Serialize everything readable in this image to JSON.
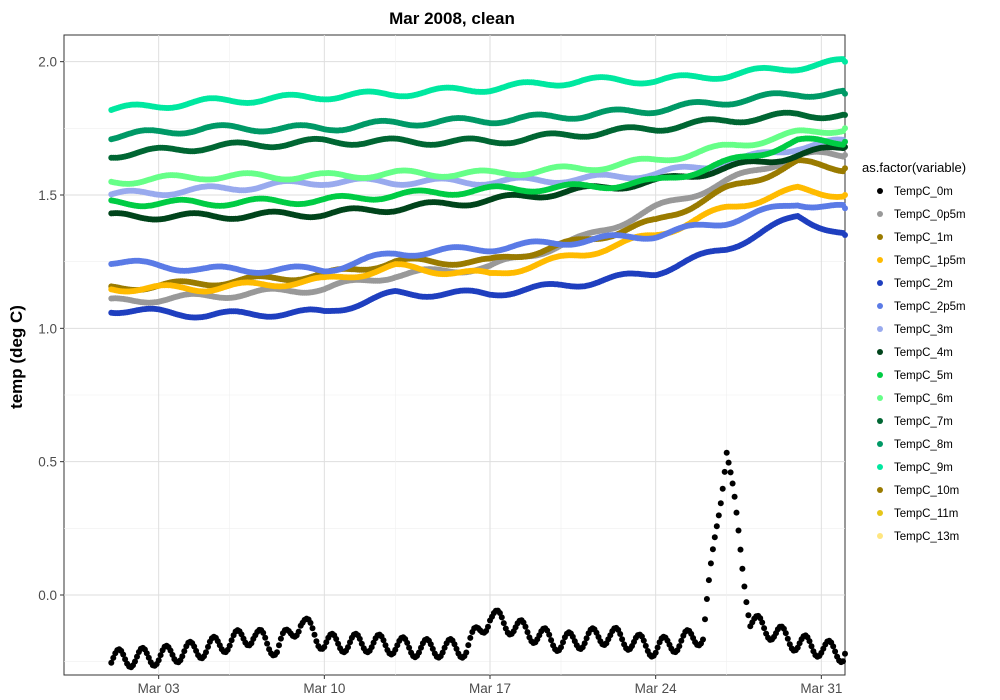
{
  "chart_data": {
    "type": "scatter",
    "title": "Mar 2008, clean",
    "xlabel": "",
    "ylabel": "temp (deg C)",
    "x_range": [
      "2008-02-28",
      "2008-04-01"
    ],
    "ylim": [
      -0.3,
      2.1
    ],
    "x_ticks": [
      {
        "date": "2008-03-03",
        "label": "Mar 03"
      },
      {
        "date": "2008-03-10",
        "label": "Mar 10"
      },
      {
        "date": "2008-03-17",
        "label": "Mar 17"
      },
      {
        "date": "2008-03-24",
        "label": "Mar 24"
      },
      {
        "date": "2008-03-31",
        "label": "Mar 31"
      }
    ],
    "y_ticks": [
      {
        "value": 0.0,
        "label": "0.0"
      },
      {
        "value": 0.5,
        "label": "0.5"
      },
      {
        "value": 1.0,
        "label": "1.0"
      },
      {
        "value": 1.5,
        "label": "1.5"
      },
      {
        "value": 2.0,
        "label": "2.0"
      }
    ],
    "grid": true,
    "legend": {
      "title": "as.factor(variable)",
      "position": "right"
    },
    "series": [
      {
        "name": "TempC_0m",
        "color": "#000000",
        "points": [
          [
            "2008-03-01",
            -0.24
          ],
          [
            "2008-03-03",
            -0.23
          ],
          [
            "2008-03-05",
            -0.2
          ],
          [
            "2008-03-07",
            -0.15
          ],
          [
            "2008-03-08",
            -0.2
          ],
          [
            "2008-03-09",
            -0.1
          ],
          [
            "2008-03-10",
            -0.18
          ],
          [
            "2008-03-12",
            -0.18
          ],
          [
            "2008-03-14",
            -0.2
          ],
          [
            "2008-03-16",
            -0.2
          ],
          [
            "2008-03-17",
            -0.08
          ],
          [
            "2008-03-18",
            -0.12
          ],
          [
            "2008-03-20",
            -0.18
          ],
          [
            "2008-03-22",
            -0.15
          ],
          [
            "2008-03-24",
            -0.2
          ],
          [
            "2008-03-26",
            -0.15
          ],
          [
            "2008-03-27",
            0.55
          ],
          [
            "2008-03-28",
            -0.1
          ],
          [
            "2008-03-30",
            -0.18
          ],
          [
            "2008-04-01",
            -0.22
          ]
        ]
      },
      {
        "name": "TempC_0p5m",
        "color": "#999999",
        "points": [
          [
            "2008-03-01",
            1.1
          ],
          [
            "2008-03-05",
            1.12
          ],
          [
            "2008-03-10",
            1.15
          ],
          [
            "2008-03-13",
            1.2
          ],
          [
            "2008-03-17",
            1.23
          ],
          [
            "2008-03-21",
            1.34
          ],
          [
            "2008-03-24",
            1.45
          ],
          [
            "2008-03-27",
            1.55
          ],
          [
            "2008-03-30",
            1.65
          ],
          [
            "2008-04-01",
            1.65
          ]
        ]
      },
      {
        "name": "TempC_1m",
        "color": "#9a7b00",
        "points": [
          [
            "2008-03-01",
            1.15
          ],
          [
            "2008-03-05",
            1.17
          ],
          [
            "2008-03-10",
            1.2
          ],
          [
            "2008-03-13",
            1.25
          ],
          [
            "2008-03-17",
            1.25
          ],
          [
            "2008-03-21",
            1.33
          ],
          [
            "2008-03-24",
            1.4
          ],
          [
            "2008-03-27",
            1.52
          ],
          [
            "2008-03-30",
            1.62
          ],
          [
            "2008-04-01",
            1.6
          ]
        ]
      },
      {
        "name": "TempC_1p5m",
        "color": "#ffbb00",
        "points": [
          [
            "2008-03-01",
            1.15
          ],
          [
            "2008-03-05",
            1.15
          ],
          [
            "2008-03-10",
            1.18
          ],
          [
            "2008-03-13",
            1.23
          ],
          [
            "2008-03-17",
            1.2
          ],
          [
            "2008-03-21",
            1.28
          ],
          [
            "2008-03-24",
            1.35
          ],
          [
            "2008-03-27",
            1.45
          ],
          [
            "2008-03-30",
            1.52
          ],
          [
            "2008-04-01",
            1.5
          ]
        ]
      },
      {
        "name": "TempC_2m",
        "color": "#1f3fbf",
        "points": [
          [
            "2008-03-01",
            1.07
          ],
          [
            "2008-03-05",
            1.05
          ],
          [
            "2008-03-10",
            1.06
          ],
          [
            "2008-03-13",
            1.13
          ],
          [
            "2008-03-17",
            1.13
          ],
          [
            "2008-03-21",
            1.17
          ],
          [
            "2008-03-24",
            1.21
          ],
          [
            "2008-03-27",
            1.3
          ],
          [
            "2008-03-30",
            1.42
          ],
          [
            "2008-04-01",
            1.35
          ]
        ]
      },
      {
        "name": "TempC_2p5m",
        "color": "#5b7be6",
        "points": [
          [
            "2008-03-01",
            1.25
          ],
          [
            "2008-03-05",
            1.22
          ],
          [
            "2008-03-10",
            1.22
          ],
          [
            "2008-03-13",
            1.28
          ],
          [
            "2008-03-17",
            1.3
          ],
          [
            "2008-03-21",
            1.33
          ],
          [
            "2008-03-24",
            1.35
          ],
          [
            "2008-03-27",
            1.4
          ],
          [
            "2008-03-30",
            1.47
          ],
          [
            "2008-04-01",
            1.45
          ]
        ]
      },
      {
        "name": "TempC_3m",
        "color": "#99aaee",
        "points": [
          [
            "2008-03-01",
            1.5
          ],
          [
            "2008-03-05",
            1.52
          ],
          [
            "2008-03-10",
            1.55
          ],
          [
            "2008-03-13",
            1.55
          ],
          [
            "2008-03-17",
            1.55
          ],
          [
            "2008-03-21",
            1.56
          ],
          [
            "2008-03-24",
            1.58
          ],
          [
            "2008-03-27",
            1.62
          ],
          [
            "2008-03-30",
            1.68
          ],
          [
            "2008-04-01",
            1.7
          ]
        ]
      },
      {
        "name": "TempC_4m",
        "color": "#00441b",
        "points": [
          [
            "2008-03-01",
            1.42
          ],
          [
            "2008-03-05",
            1.42
          ],
          [
            "2008-03-10",
            1.43
          ],
          [
            "2008-03-13",
            1.45
          ],
          [
            "2008-03-17",
            1.48
          ],
          [
            "2008-03-21",
            1.52
          ],
          [
            "2008-03-24",
            1.55
          ],
          [
            "2008-03-27",
            1.6
          ],
          [
            "2008-03-30",
            1.65
          ],
          [
            "2008-04-01",
            1.68
          ]
        ]
      },
      {
        "name": "TempC_5m",
        "color": "#00cc44",
        "points": [
          [
            "2008-03-01",
            1.47
          ],
          [
            "2008-03-05",
            1.47
          ],
          [
            "2008-03-10",
            1.48
          ],
          [
            "2008-03-13",
            1.5
          ],
          [
            "2008-03-17",
            1.52
          ],
          [
            "2008-03-21",
            1.53
          ],
          [
            "2008-03-24",
            1.55
          ],
          [
            "2008-03-27",
            1.62
          ],
          [
            "2008-03-30",
            1.7
          ],
          [
            "2008-04-01",
            1.7
          ]
        ]
      },
      {
        "name": "TempC_6m",
        "color": "#66ff88",
        "points": [
          [
            "2008-03-01",
            1.55
          ],
          [
            "2008-03-05",
            1.57
          ],
          [
            "2008-03-10",
            1.57
          ],
          [
            "2008-03-13",
            1.58
          ],
          [
            "2008-03-17",
            1.58
          ],
          [
            "2008-03-21",
            1.6
          ],
          [
            "2008-03-24",
            1.63
          ],
          [
            "2008-03-27",
            1.68
          ],
          [
            "2008-03-30",
            1.73
          ],
          [
            "2008-04-01",
            1.75
          ]
        ]
      },
      {
        "name": "TempC_7m",
        "color": "#006633",
        "points": [
          [
            "2008-03-01",
            1.65
          ],
          [
            "2008-03-05",
            1.68
          ],
          [
            "2008-03-10",
            1.7
          ],
          [
            "2008-03-13",
            1.7
          ],
          [
            "2008-03-17",
            1.7
          ],
          [
            "2008-03-21",
            1.73
          ],
          [
            "2008-03-24",
            1.75
          ],
          [
            "2008-03-27",
            1.78
          ],
          [
            "2008-03-30",
            1.8
          ],
          [
            "2008-04-01",
            1.8
          ]
        ]
      },
      {
        "name": "TempC_8m",
        "color": "#009966",
        "points": [
          [
            "2008-03-01",
            1.72
          ],
          [
            "2008-03-05",
            1.75
          ],
          [
            "2008-03-10",
            1.75
          ],
          [
            "2008-03-13",
            1.77
          ],
          [
            "2008-03-17",
            1.78
          ],
          [
            "2008-03-21",
            1.8
          ],
          [
            "2008-03-24",
            1.82
          ],
          [
            "2008-03-27",
            1.85
          ],
          [
            "2008-03-30",
            1.88
          ],
          [
            "2008-04-01",
            1.88
          ]
        ]
      },
      {
        "name": "TempC_9m",
        "color": "#00e8a0",
        "points": [
          [
            "2008-03-01",
            1.82
          ],
          [
            "2008-03-05",
            1.85
          ],
          [
            "2008-03-10",
            1.87
          ],
          [
            "2008-03-13",
            1.88
          ],
          [
            "2008-03-17",
            1.9
          ],
          [
            "2008-03-21",
            1.93
          ],
          [
            "2008-03-24",
            1.93
          ],
          [
            "2008-03-27",
            1.95
          ],
          [
            "2008-03-30",
            1.98
          ],
          [
            "2008-04-01",
            2.0
          ]
        ]
      },
      {
        "name": "TempC_10m",
        "color": "#9a7b00",
        "points": []
      },
      {
        "name": "TempC_11m",
        "color": "#e6c619",
        "points": []
      },
      {
        "name": "TempC_13m",
        "color": "#ffe680",
        "points": []
      }
    ]
  }
}
